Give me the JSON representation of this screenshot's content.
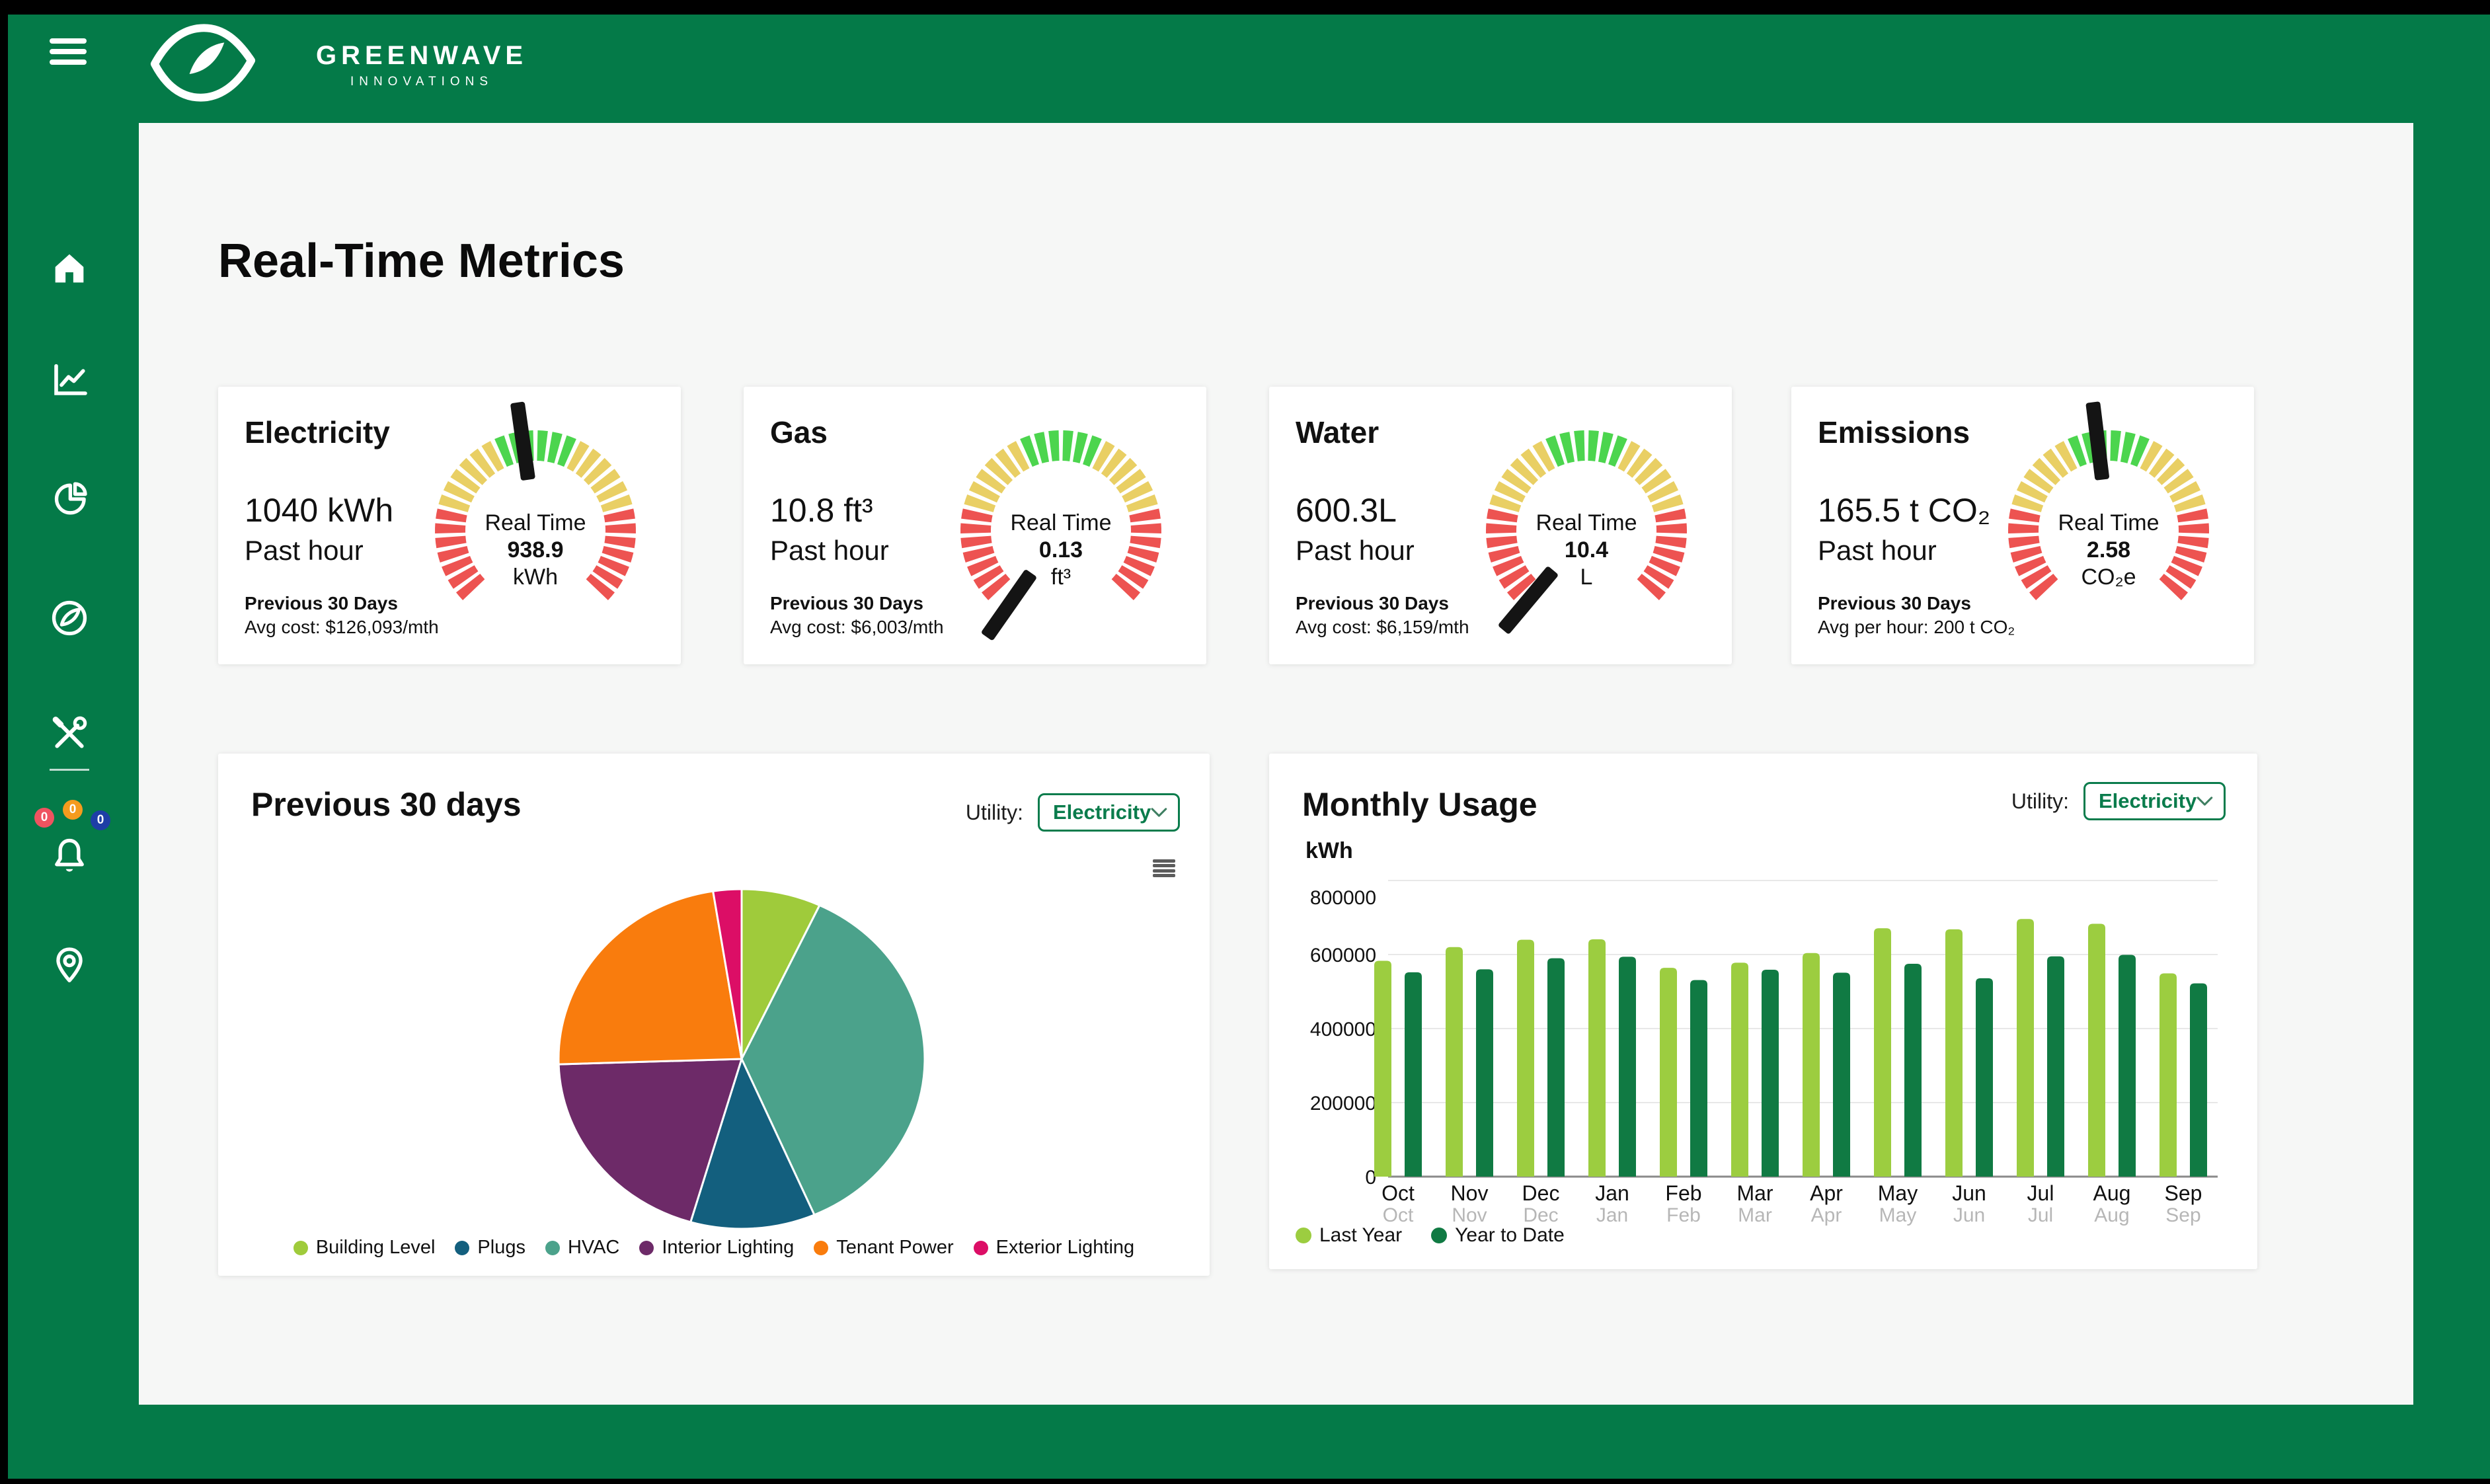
{
  "brand": {
    "name": "GREENWAVE",
    "tagline": "INNOVATIONS"
  },
  "page": {
    "title": "Real-Time Metrics"
  },
  "colors": {
    "app_green": "#047a48",
    "panel_bg": "#f6f7f6",
    "accent_green": "#0a7c4c",
    "gauge_needle": "#141414",
    "grid_line": "#e8e8e8",
    "axis_line": "#8a8a8a"
  },
  "sidebar": {
    "items": [
      {
        "id": "home",
        "icon": "home-icon"
      },
      {
        "id": "analytics",
        "icon": "line-chart-icon"
      },
      {
        "id": "reports",
        "icon": "pie-chart-icon"
      },
      {
        "id": "sustainability",
        "icon": "leaf-icon"
      },
      {
        "id": "tools",
        "icon": "tools-icon",
        "divider": true
      },
      {
        "id": "notifications",
        "icon": "bell-icon"
      },
      {
        "id": "locations",
        "icon": "location-pin-icon"
      }
    ],
    "notification_badges": [
      {
        "value": "0",
        "color": "#ef5360"
      },
      {
        "value": "0",
        "color": "#f59b1e"
      },
      {
        "value": "0",
        "color": "#1e3ea6"
      }
    ]
  },
  "gauge_style": {
    "arc_degrees": 270,
    "inner_radius": 106,
    "outer_radius": 152,
    "segments": [
      {
        "color": "#ed5351",
        "count": 7
      },
      {
        "color": "#e9cf64",
        "count": 6
      },
      {
        "color": "#4cd54e",
        "count": 6
      },
      {
        "color": "#e9cf64",
        "count": 6
      },
      {
        "color": "#ed5351",
        "count": 7
      }
    ]
  },
  "metric_cards": [
    {
      "title": "Electricity",
      "value": "1040 kWh",
      "period": "Past hour",
      "prev_label": "Previous 30 Days",
      "prev_detail": "Avg cost: $126,093/mth",
      "gauge": {
        "label": "Real Time",
        "value": "938.9",
        "unit": "kWh",
        "needle_deg": -8
      }
    },
    {
      "title": "Gas",
      "value": "10.8 ft³",
      "period": "Past hour",
      "prev_label": "Previous 30 Days",
      "prev_detail": "Avg cost: $6,003/mth",
      "gauge": {
        "label": "Real Time",
        "value": "0.13",
        "unit": "ft³",
        "needle_deg": -145
      }
    },
    {
      "title": "Water",
      "value": "600.3L",
      "period": "Past hour",
      "prev_label": "Previous 30 Days",
      "prev_detail": "Avg cost: $6,159/mth",
      "gauge": {
        "label": "Real Time",
        "value": "10.4",
        "unit": "L",
        "needle_deg": -140
      }
    },
    {
      "title": "Emissions",
      "value": "165.5 t CO₂",
      "period": "Past hour",
      "prev_label": "Previous 30 Days",
      "prev_detail": "Avg per hour: 200 t CO₂",
      "gauge": {
        "label": "Real Time",
        "value": "2.58",
        "unit": "CO₂e",
        "needle_deg": -7
      }
    }
  ],
  "pie_card": {
    "title": "Previous 30 days",
    "utility_label": "Utility:",
    "utility_value": "Electricity",
    "menu_icon": "hamburger-icon",
    "chart_data": {
      "type": "pie",
      "slices": [
        {
          "label": "Building Level",
          "value": 7,
          "color": "#9fcb3b"
        },
        {
          "label": "HVAC",
          "value": 36.5,
          "color": "#4ba28b"
        },
        {
          "label": "Plugs",
          "value": 11,
          "color": "#135f7e"
        },
        {
          "label": "Interior Lighting",
          "value": 20,
          "color": "#6d2a68"
        },
        {
          "label": "Tenant Power",
          "value": 23,
          "color": "#f97c0d"
        },
        {
          "label": "Exterior Lighting",
          "value": 2.5,
          "color": "#dc0e66"
        }
      ],
      "legend": [
        {
          "label": "Building Level",
          "color": "#9fcb3b"
        },
        {
          "label": "Plugs",
          "color": "#135f7e"
        },
        {
          "label": "HVAC",
          "color": "#4ba28b"
        },
        {
          "label": "Interior Lighting",
          "color": "#6d2a68"
        },
        {
          "label": "Tenant Power",
          "color": "#f97c0d"
        },
        {
          "label": "Exterior Lighting",
          "color": "#dc0e66"
        }
      ]
    }
  },
  "bar_card": {
    "title": "Monthly Usage",
    "utility_label": "Utility:",
    "utility_value": "Electricity",
    "y_unit": "kWh",
    "chart_data": {
      "type": "bar",
      "categories": [
        "Oct",
        "Nov",
        "Dec",
        "Jan",
        "Feb",
        "Mar",
        "Apr",
        "May",
        "Jun",
        "Jul",
        "Aug",
        "Sep"
      ],
      "series": [
        {
          "name": "Last Year",
          "color": "#9ccd40",
          "values": [
            583000,
            620000,
            640000,
            641000,
            564000,
            578000,
            604000,
            671000,
            668000,
            696000,
            683000,
            549000
          ]
        },
        {
          "name": "Year to Date",
          "color": "#107a43",
          "values": [
            552000,
            560000,
            590000,
            594000,
            531000,
            559000,
            551000,
            575000,
            536000,
            595000,
            599000,
            522000
          ]
        }
      ],
      "ylim": [
        0,
        800000
      ],
      "yticks": [
        0,
        200000,
        400000,
        600000,
        800000
      ],
      "ytick_labels": [
        "0",
        "200000",
        "400000",
        "600000",
        "800000"
      ],
      "grid": true,
      "legend_position": "bottom-left"
    }
  }
}
